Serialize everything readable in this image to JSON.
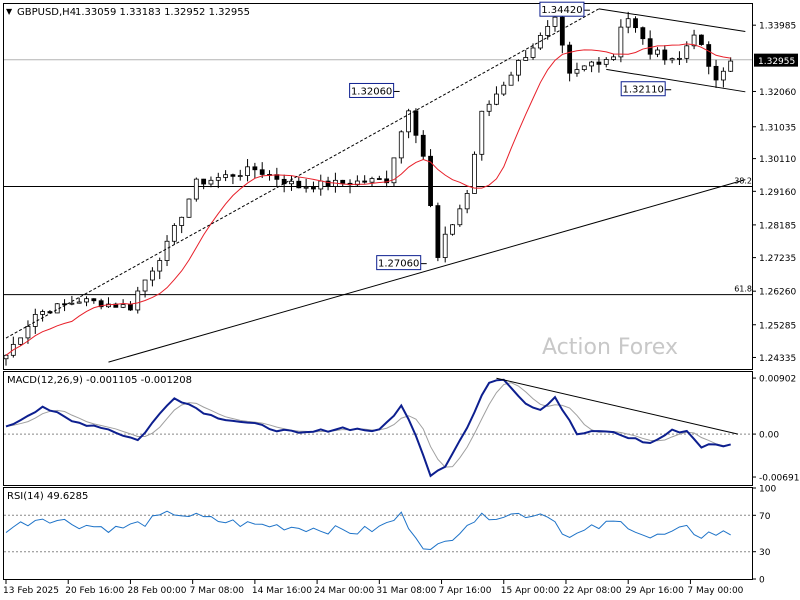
{
  "header": {
    "marker": "▼",
    "symbol": "GBPUSD,H4",
    "ohlc": "1.33059 1.33183 1.32952 1.32955"
  },
  "watermark": "Action Forex",
  "colors": {
    "candle": "#000000",
    "ma": "#e8202a",
    "macd": "#0d1f8f",
    "signal": "#a0a0a0",
    "rsi": "#1e73c8",
    "trend": "#000000",
    "label_border": "#0d1f8f",
    "grid": "#000000",
    "current_price_bg": "#000000",
    "current_price_text": "#ffffff",
    "watermark": "#c8c8c8"
  },
  "chart_data": [
    {
      "type": "candlestick",
      "panel": "price",
      "symbol": "GBPUSD,H4",
      "ylim": [
        1.24,
        1.346
      ],
      "y_ticks": [
        "1.33985",
        "1.32955",
        "1.32060",
        "1.31035",
        "1.30110",
        "1.29160",
        "1.28185",
        "1.27235",
        "1.26260",
        "1.25285",
        "1.24335"
      ],
      "current_price": "1.32955",
      "x_tick_labels": [
        "13 Feb 2025",
        "20 Feb 16:00",
        "28 Feb 00:00",
        "7 Mar 08:00",
        "14 Mar 16:00",
        "24 Mar 00:00",
        "31 Mar 08:00",
        "7 Apr 16:00",
        "15 Apr 00:00",
        "22 Apr 08:00",
        "29 Apr 16:00",
        "7 May 00:00"
      ],
      "x_tick_positions": [
        0,
        8.5,
        17,
        25.5,
        34,
        42.5,
        51,
        59.5,
        68,
        76.5,
        85,
        93.5
      ],
      "bars": 100,
      "anchors": [
        [
          0,
          1.244
        ],
        [
          4,
          1.256
        ],
        [
          10,
          1.26
        ],
        [
          17,
          1.258
        ],
        [
          18,
          1.2625
        ],
        [
          22,
          1.276
        ],
        [
          26,
          1.294
        ],
        [
          34,
          1.298
        ],
        [
          40,
          1.293
        ],
        [
          46,
          1.294
        ],
        [
          52,
          1.295
        ],
        [
          55,
          1.316
        ],
        [
          57,
          1.302
        ],
        [
          59,
          1.272
        ],
        [
          60,
          1.278
        ],
        [
          63,
          1.291
        ],
        [
          65,
          1.314
        ],
        [
          70,
          1.329
        ],
        [
          75,
          1.341
        ],
        [
          77,
          1.325
        ],
        [
          80,
          1.329
        ],
        [
          83,
          1.331
        ],
        [
          84,
          1.34
        ],
        [
          85,
          1.342
        ],
        [
          88,
          1.332
        ],
        [
          92,
          1.33
        ],
        [
          94,
          1.338
        ],
        [
          97,
          1.323
        ],
        [
          99,
          1.3295
        ]
      ],
      "labels": [
        {
          "text": "1.32060",
          "bar": 53.5,
          "price": 1.3206
        },
        {
          "text": "1.27060",
          "bar": 57.2,
          "price": 1.2706
        },
        {
          "text": "1.34420",
          "bar": 79.5,
          "price": 1.3442
        },
        {
          "text": "1.32110",
          "bar": 90.6,
          "price": 1.3211
        }
      ],
      "horizontal_lines": [
        {
          "price": 1.3298,
          "label": "",
          "color": "#b4b4b4"
        },
        {
          "price": 1.293,
          "label": "38.2",
          "color": "#000000"
        },
        {
          "price": 1.2616,
          "label": "61.8",
          "color": "#000000"
        }
      ],
      "trendlines": [
        {
          "from": [
            14,
            1.242
          ],
          "to": [
            101,
            1.295
          ],
          "dash": false
        },
        {
          "from": [
            0,
            1.249
          ],
          "to": [
            81,
            1.3446
          ],
          "dash": true
        },
        {
          "from": [
            81,
            1.3446
          ],
          "to": [
            101,
            1.338
          ],
          "dash": false
        },
        {
          "from": [
            82,
            1.327
          ],
          "to": [
            101,
            1.3205
          ],
          "dash": false
        }
      ],
      "moving_average": {
        "period": "",
        "color": "#e8202a"
      }
    },
    {
      "type": "line",
      "panel": "macd",
      "title": "MACD(12,26,9) -0.001105 -0.001208",
      "ylim": [
        -0.0082,
        0.01
      ],
      "y_ticks": [
        "0.00902",
        "0.00",
        "-0.006915"
      ],
      "series": [
        {
          "role": "macd",
          "anchors": [
            [
              0,
              0.001
            ],
            [
              5,
              0.0045
            ],
            [
              9,
              0.002
            ],
            [
              13,
              0.0012
            ],
            [
              18,
              -0.001
            ],
            [
              23,
              0.006
            ],
            [
              28,
              0.003
            ],
            [
              34,
              0.0015
            ],
            [
              40,
              0.0
            ],
            [
              46,
              0.001
            ],
            [
              51,
              0.0005
            ],
            [
              54,
              0.0045
            ],
            [
              56,
              0.0
            ],
            [
              58,
              -0.0065
            ],
            [
              60,
              -0.005
            ],
            [
              63,
              0.001
            ],
            [
              66,
              0.0085
            ],
            [
              68,
              0.009
            ],
            [
              71,
              0.005
            ],
            [
              73,
              0.004
            ],
            [
              75,
              0.006
            ],
            [
              78,
              0.0
            ],
            [
              82,
              0.0005
            ],
            [
              85,
              -0.0005
            ],
            [
              88,
              -0.0015
            ],
            [
              91,
              0.0005
            ],
            [
              93,
              0.0005
            ],
            [
              95,
              -0.002
            ],
            [
              96,
              -0.0018
            ]
          ]
        },
        {
          "role": "signal"
        }
      ],
      "trendline": {
        "from": [
          67,
          0.009
        ],
        "to": [
          100,
          0.0
        ]
      }
    },
    {
      "type": "line",
      "panel": "rsi",
      "title": "RSI(14) 49.6285",
      "ylim": [
        0,
        100
      ],
      "y_ticks": [
        "100",
        "70",
        "30",
        "0"
      ],
      "series": [
        {
          "role": "rsi",
          "anchors": [
            [
              0,
              55
            ],
            [
              5,
              68
            ],
            [
              10,
              60
            ],
            [
              15,
              55
            ],
            [
              19,
              62
            ],
            [
              23,
              73
            ],
            [
              28,
              65
            ],
            [
              33,
              60
            ],
            [
              38,
              58
            ],
            [
              43,
              55
            ],
            [
              48,
              52
            ],
            [
              51,
              56
            ],
            [
              54,
              70
            ],
            [
              57,
              38
            ],
            [
              58,
              30
            ],
            [
              60,
              40
            ],
            [
              63,
              62
            ],
            [
              66,
              70
            ],
            [
              70,
              71
            ],
            [
              74,
              72
            ],
            [
              77,
              45
            ],
            [
              80,
              55
            ],
            [
              83,
              62
            ],
            [
              85,
              60
            ],
            [
              88,
              45
            ],
            [
              91,
              50
            ],
            [
              93,
              55
            ],
            [
              95,
              48
            ],
            [
              96,
              50
            ]
          ]
        }
      ]
    }
  ]
}
